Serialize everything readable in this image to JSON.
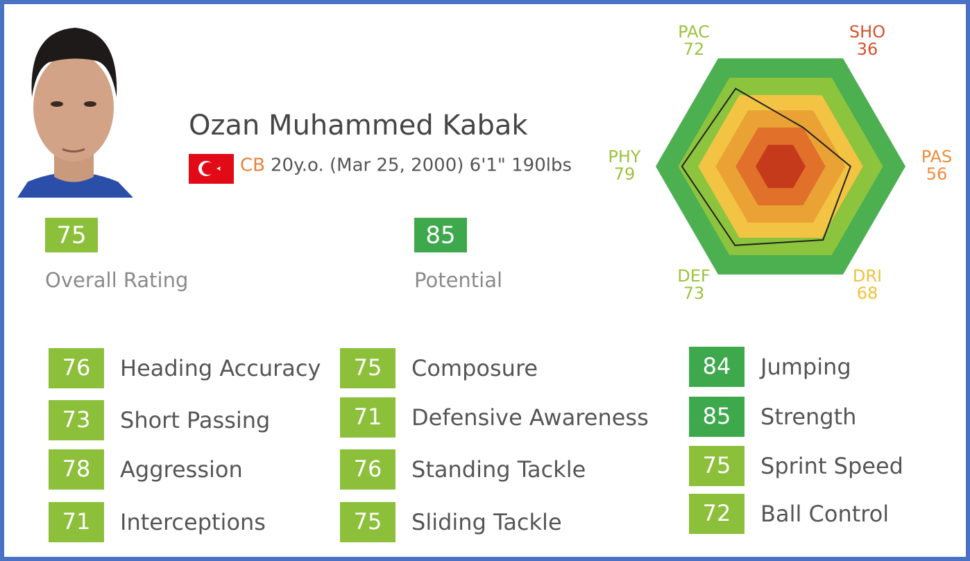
{
  "player": {
    "name": "Ozan Muhammed Kabak",
    "position": "CB",
    "details": "20y.o. (Mar 25, 2000) 6'1\" 190lbs"
  },
  "summary": [
    {
      "value": 75,
      "label": "Overall Rating",
      "color": "#8cbf3a"
    },
    {
      "value": 85,
      "label": "Potential",
      "color": "#3ea84c"
    }
  ],
  "radar": {
    "type": "radar",
    "rlim": [
      0,
      100
    ],
    "axes": [
      {
        "label": "PAC",
        "value": 72,
        "color": "#9cc23c"
      },
      {
        "label": "SHO",
        "value": 36,
        "color": "#d4522c"
      },
      {
        "label": "PAS",
        "value": 56,
        "color": "#ee8c3a"
      },
      {
        "label": "DRI",
        "value": 68,
        "color": "#f0c23a"
      },
      {
        "label": "DEF",
        "value": 73,
        "color": "#9cc23c"
      },
      {
        "label": "PHY",
        "value": 79,
        "color": "#9cc23c"
      }
    ]
  },
  "skills": [
    [
      {
        "value": 76,
        "label": "Heading Accuracy",
        "color": "#8cbf3a"
      },
      {
        "value": 73,
        "label": "Short Passing",
        "color": "#8cbf3a"
      },
      {
        "value": 78,
        "label": "Aggression",
        "color": "#8cbf3a"
      },
      {
        "value": 71,
        "label": "Interceptions",
        "color": "#8cbf3a"
      }
    ],
    [
      {
        "value": 75,
        "label": "Composure",
        "color": "#8cbf3a"
      },
      {
        "value": 71,
        "label": "Defensive Awareness",
        "color": "#8cbf3a"
      },
      {
        "value": 76,
        "label": "Standing Tackle",
        "color": "#8cbf3a"
      },
      {
        "value": 75,
        "label": "Sliding Tackle",
        "color": "#8cbf3a"
      }
    ],
    [
      {
        "value": 84,
        "label": "Jumping",
        "color": "#3ea84c"
      },
      {
        "value": 85,
        "label": "Strength",
        "color": "#3ea84c"
      },
      {
        "value": 75,
        "label": "Sprint Speed",
        "color": "#8cbf3a"
      },
      {
        "value": 72,
        "label": "Ball Control",
        "color": "#8cbf3a"
      }
    ]
  ]
}
